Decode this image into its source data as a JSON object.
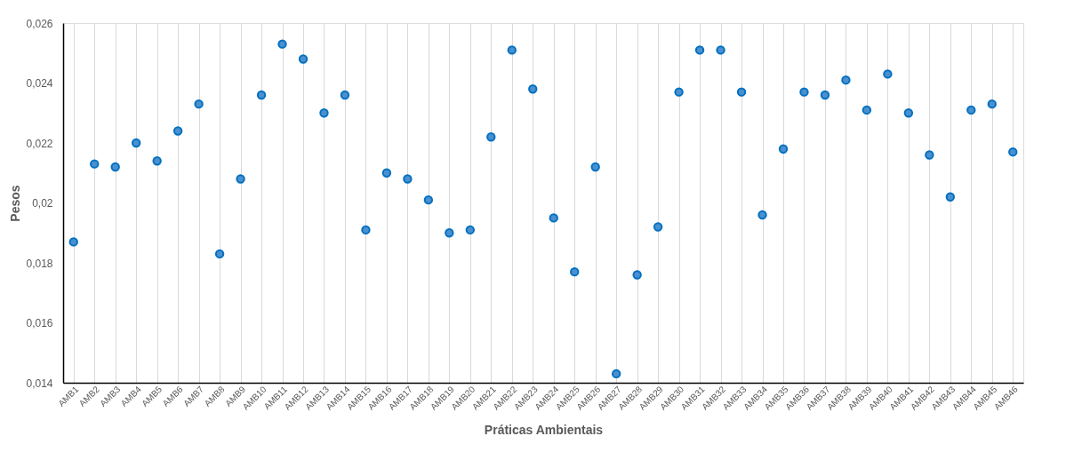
{
  "chart_data": {
    "type": "scatter",
    "xlabel": "Práticas Ambientais",
    "ylabel": "Pesos",
    "categories": [
      "AMB1",
      "AMB2",
      "AMB3",
      "AMB4",
      "AMB5",
      "AMB6",
      "AMB7",
      "AMB8",
      "AMB9",
      "AMB10",
      "AMB11",
      "AMB12",
      "AMB13",
      "AMB14",
      "AMB15",
      "AMB16",
      "AMB17",
      "AMB18",
      "AMB19",
      "AMB20",
      "AMB21",
      "AMB22",
      "AMB23",
      "AMB24",
      "AMB25",
      "AMB26",
      "AMB27",
      "AMB28",
      "AMB29",
      "AMB30",
      "AMB31",
      "AMB32",
      "AMB33",
      "AMB34",
      "AMB35",
      "AMB36",
      "AMB37",
      "AMB38",
      "AMB39",
      "AMB40",
      "AMB41",
      "AMB42",
      "AMB43",
      "AMB44",
      "AMB45",
      "AMB46"
    ],
    "series": [
      {
        "color": "#0070c0",
        "values": [
          0.0187,
          0.0213,
          0.0212,
          0.022,
          0.0214,
          0.0224,
          0.0233,
          0.0183,
          0.0208,
          0.0236,
          0.0253,
          0.0248,
          0.023,
          0.0236,
          0.0191,
          0.021,
          0.0208,
          0.0201,
          0.019,
          0.0191,
          0.0222,
          0.0251,
          0.0238,
          0.0195,
          0.0177,
          0.0212,
          0.0143,
          0.0176,
          0.0192,
          0.0237,
          0.0251,
          0.0251,
          0.0237,
          0.0196,
          0.0218,
          0.0237,
          0.0236,
          0.0241,
          0.0231,
          0.0243,
          0.023,
          0.0216,
          0.0202,
          0.0231,
          0.0233,
          0.0217
        ]
      }
    ],
    "ylim": [
      0.014,
      0.026
    ],
    "yticks": [
      {
        "value": 0.014,
        "label": "0,014"
      },
      {
        "value": 0.016,
        "label": "0,016"
      },
      {
        "value": 0.018,
        "label": "0,018"
      },
      {
        "value": 0.02,
        "label": "0,02"
      },
      {
        "value": 0.022,
        "label": "0,022"
      },
      {
        "value": 0.024,
        "label": "0,024"
      },
      {
        "value": 0.026,
        "label": "0,026"
      }
    ],
    "grid": "x",
    "marker": "circle"
  }
}
